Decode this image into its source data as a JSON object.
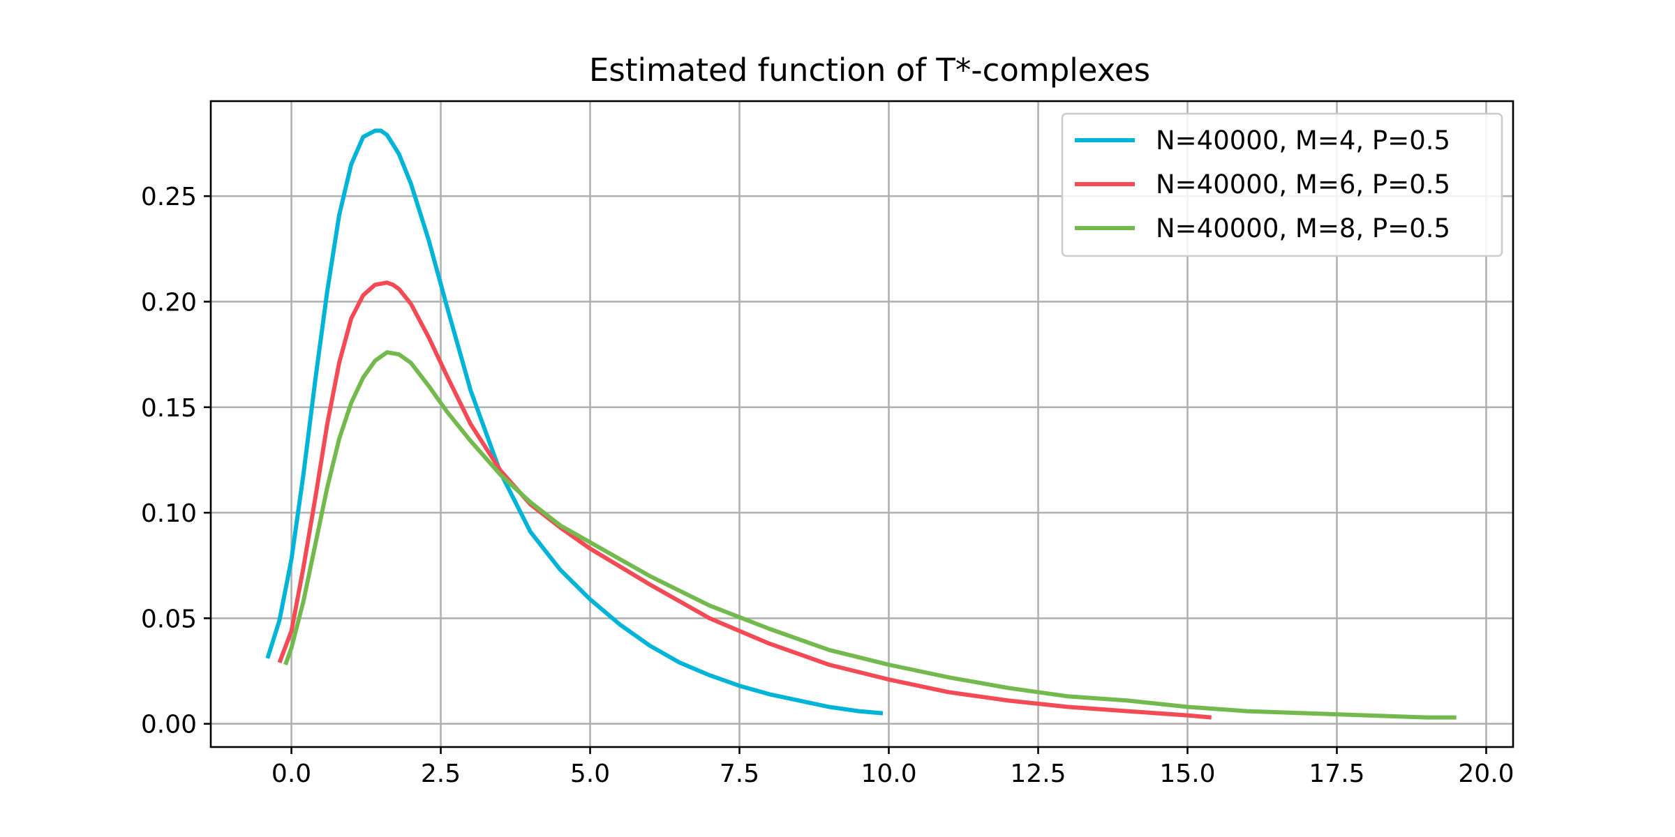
{
  "chart_data": {
    "type": "line",
    "title": "Estimated function of T*-complexes",
    "xlabel": "",
    "ylabel": "",
    "xlim": [
      -1.35,
      20.45
    ],
    "ylim": [
      -0.011,
      0.295
    ],
    "x_ticks": [
      0.0,
      2.5,
      5.0,
      7.5,
      10.0,
      12.5,
      15.0,
      17.5,
      20.0
    ],
    "x_tick_labels": [
      "0.0",
      "2.5",
      "5.0",
      "7.5",
      "10.0",
      "12.5",
      "15.0",
      "17.5",
      "20.0"
    ],
    "y_ticks": [
      0.0,
      0.05,
      0.1,
      0.15,
      0.2,
      0.25
    ],
    "y_tick_labels": [
      "0.00",
      "0.05",
      "0.10",
      "0.15",
      "0.20",
      "0.25"
    ],
    "grid": true,
    "legend_position": "top-right",
    "series": [
      {
        "name": "N=40000, M=4, P=0.5",
        "color": "#00b4d8",
        "x": [
          -0.4,
          -0.2,
          0.0,
          0.2,
          0.4,
          0.6,
          0.8,
          1.0,
          1.2,
          1.4,
          1.5,
          1.6,
          1.8,
          2.0,
          2.3,
          2.6,
          3.0,
          3.5,
          4.0,
          4.5,
          5.0,
          5.5,
          6.0,
          6.5,
          7.0,
          7.5,
          8.0,
          8.5,
          9.0,
          9.5,
          9.9
        ],
        "y": [
          0.031,
          0.049,
          0.078,
          0.118,
          0.163,
          0.205,
          0.241,
          0.265,
          0.278,
          0.281,
          0.281,
          0.279,
          0.27,
          0.256,
          0.229,
          0.198,
          0.158,
          0.119,
          0.091,
          0.073,
          0.059,
          0.047,
          0.037,
          0.029,
          0.023,
          0.018,
          0.014,
          0.011,
          0.008,
          0.006,
          0.005
        ]
      },
      {
        "name": "N=40000, M=6, P=0.5",
        "color": "#f24b55",
        "x": [
          -0.2,
          0.0,
          0.2,
          0.4,
          0.6,
          0.8,
          1.0,
          1.2,
          1.4,
          1.6,
          1.7,
          1.8,
          2.0,
          2.3,
          2.6,
          3.0,
          3.5,
          4.0,
          4.5,
          5.0,
          6.0,
          7.0,
          8.0,
          9.0,
          10.0,
          11.0,
          12.0,
          13.0,
          14.0,
          15.0,
          15.4
        ],
        "y": [
          0.029,
          0.044,
          0.074,
          0.107,
          0.142,
          0.171,
          0.192,
          0.203,
          0.208,
          0.209,
          0.208,
          0.206,
          0.199,
          0.183,
          0.165,
          0.142,
          0.12,
          0.104,
          0.093,
          0.083,
          0.066,
          0.05,
          0.038,
          0.028,
          0.021,
          0.015,
          0.011,
          0.008,
          0.006,
          0.004,
          0.003
        ]
      },
      {
        "name": "N=40000, M=8, P=0.5",
        "color": "#74b94e",
        "x": [
          -0.1,
          0.0,
          0.2,
          0.4,
          0.6,
          0.8,
          1.0,
          1.2,
          1.4,
          1.6,
          1.8,
          2.0,
          2.3,
          2.6,
          3.0,
          3.5,
          4.0,
          4.5,
          5.0,
          6.0,
          7.0,
          8.0,
          9.0,
          10.0,
          11.0,
          12.0,
          13.0,
          14.0,
          15.0,
          16.0,
          17.0,
          18.0,
          19.0,
          19.5
        ],
        "y": [
          0.028,
          0.036,
          0.058,
          0.085,
          0.112,
          0.135,
          0.152,
          0.164,
          0.172,
          0.176,
          0.175,
          0.171,
          0.16,
          0.148,
          0.134,
          0.118,
          0.105,
          0.094,
          0.086,
          0.07,
          0.056,
          0.045,
          0.035,
          0.028,
          0.022,
          0.017,
          0.013,
          0.011,
          0.008,
          0.006,
          0.005,
          0.004,
          0.003,
          0.003
        ]
      }
    ]
  }
}
